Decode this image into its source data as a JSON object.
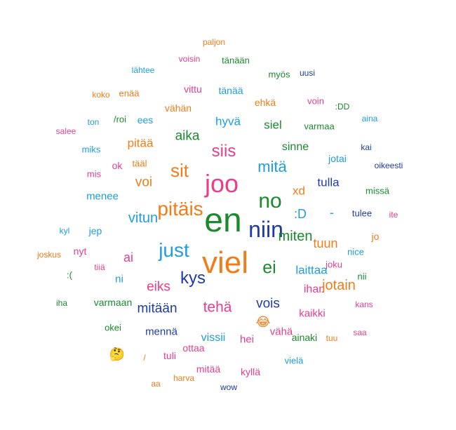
{
  "colors": {
    "pink": "#e83e8c",
    "green": "#1b8a2e",
    "blue": "#1f9de0",
    "orange": "#f07d1a",
    "navy": "#1e3ba8"
  },
  "words": [
    {
      "text": "paljon",
      "color": "orange"
    },
    {
      "text": "voisin",
      "color": "pink"
    },
    {
      "text": "tänään",
      "color": "green"
    },
    {
      "text": "lähtee",
      "color": "blue"
    },
    {
      "text": "myös",
      "color": "green"
    },
    {
      "text": "uusi",
      "color": "navy"
    },
    {
      "text": "koko",
      "color": "orange"
    },
    {
      "text": "enää",
      "color": "orange"
    },
    {
      "text": "vittu",
      "color": "pink"
    },
    {
      "text": "tänää",
      "color": "blue"
    },
    {
      "text": "ehkä",
      "color": "orange"
    },
    {
      "text": "voin",
      "color": "pink"
    },
    {
      "text": ":DD",
      "color": "green"
    },
    {
      "text": "vähän",
      "color": "orange"
    },
    {
      "text": "ton",
      "color": "blue"
    },
    {
      "text": "/roi",
      "color": "green"
    },
    {
      "text": "ees",
      "color": "blue"
    },
    {
      "text": "hyvä",
      "color": "blue"
    },
    {
      "text": "siel",
      "color": "green"
    },
    {
      "text": "varmaa",
      "color": "green"
    },
    {
      "text": "aina",
      "color": "blue"
    },
    {
      "text": "salee",
      "color": "pink"
    },
    {
      "text": "aika",
      "color": "green"
    },
    {
      "text": "pitää",
      "color": "orange"
    },
    {
      "text": "siis",
      "color": "pink"
    },
    {
      "text": "sinne",
      "color": "green"
    },
    {
      "text": "miks",
      "color": "blue"
    },
    {
      "text": "kai",
      "color": "navy"
    },
    {
      "text": "jotai",
      "color": "blue"
    },
    {
      "text": "tääl",
      "color": "orange"
    },
    {
      "text": "ok",
      "color": "pink"
    },
    {
      "text": "sit",
      "color": "orange"
    },
    {
      "text": "mitä",
      "color": "blue"
    },
    {
      "text": "oikeesti",
      "color": "navy"
    },
    {
      "text": "mis",
      "color": "pink"
    },
    {
      "text": "joo",
      "color": "pink"
    },
    {
      "text": "voi",
      "color": "orange"
    },
    {
      "text": "tulla",
      "color": "navy"
    },
    {
      "text": "xd",
      "color": "orange"
    },
    {
      "text": "missä",
      "color": "green"
    },
    {
      "text": "menee",
      "color": "blue"
    },
    {
      "text": "no",
      "color": "green"
    },
    {
      "text": "pitäis",
      "color": "orange"
    },
    {
      "text": "en",
      "color": "green"
    },
    {
      "text": ":D",
      "color": "blue"
    },
    {
      "text": "-",
      "color": "blue"
    },
    {
      "text": "tulee",
      "color": "navy"
    },
    {
      "text": "ite",
      "color": "pink"
    },
    {
      "text": "vitun",
      "color": "blue"
    },
    {
      "text": "niin",
      "color": "navy"
    },
    {
      "text": "kyl",
      "color": "blue"
    },
    {
      "text": "jep",
      "color": "blue"
    },
    {
      "text": "miten",
      "color": "green"
    },
    {
      "text": "jo",
      "color": "orange"
    },
    {
      "text": "tuun",
      "color": "orange"
    },
    {
      "text": "just",
      "color": "blue"
    },
    {
      "text": "nyt",
      "color": "pink"
    },
    {
      "text": "joskus",
      "color": "orange"
    },
    {
      "text": "nice",
      "color": "blue"
    },
    {
      "text": "ai",
      "color": "pink"
    },
    {
      "text": "viel",
      "color": "orange"
    },
    {
      "text": "ei",
      "color": "green"
    },
    {
      "text": "joku",
      "color": "pink"
    },
    {
      "text": "tiiä",
      "color": "pink"
    },
    {
      "text": ":(",
      "color": "green"
    },
    {
      "text": "laittaa",
      "color": "blue"
    },
    {
      "text": "ni",
      "color": "blue"
    },
    {
      "text": "kys",
      "color": "navy"
    },
    {
      "text": "nii",
      "color": "green"
    },
    {
      "text": "eiks",
      "color": "pink"
    },
    {
      "text": "ihan",
      "color": "pink"
    },
    {
      "text": "iha",
      "color": "green"
    },
    {
      "text": "varmaan",
      "color": "green"
    },
    {
      "text": "tehä",
      "color": "pink"
    },
    {
      "text": "vois",
      "color": "navy"
    },
    {
      "text": "kans",
      "color": "pink"
    },
    {
      "text": "mitään",
      "color": "navy"
    },
    {
      "text": "kaikki",
      "color": "pink"
    },
    {
      "text": "okei",
      "color": "green"
    },
    {
      "text": "mennä",
      "color": "navy"
    },
    {
      "text": "vähä",
      "color": "pink"
    },
    {
      "text": "saa",
      "color": "pink"
    },
    {
      "text": "vissii",
      "color": "blue"
    },
    {
      "text": "hei",
      "color": "pink"
    },
    {
      "text": "ainaki",
      "color": "green"
    },
    {
      "text": "tuu",
      "color": "orange"
    },
    {
      "text": "ottaa",
      "color": "pink"
    },
    {
      "text": "/",
      "color": "orange"
    },
    {
      "text": "tuli",
      "color": "pink"
    },
    {
      "text": "vielä",
      "color": "blue"
    },
    {
      "text": "mitää",
      "color": "pink"
    },
    {
      "text": "kyllä",
      "color": "pink"
    },
    {
      "text": "harva",
      "color": "orange"
    },
    {
      "text": "aa",
      "color": "orange"
    },
    {
      "text": "wow",
      "color": "navy"
    },
    {
      "text": "jotain",
      "color": "orange"
    },
    {
      "text": "😂",
      "color": "orange"
    },
    {
      "text": "🤔",
      "color": "orange"
    },
    {
      "text": "😂😂",
      "color": "orange"
    }
  ]
}
